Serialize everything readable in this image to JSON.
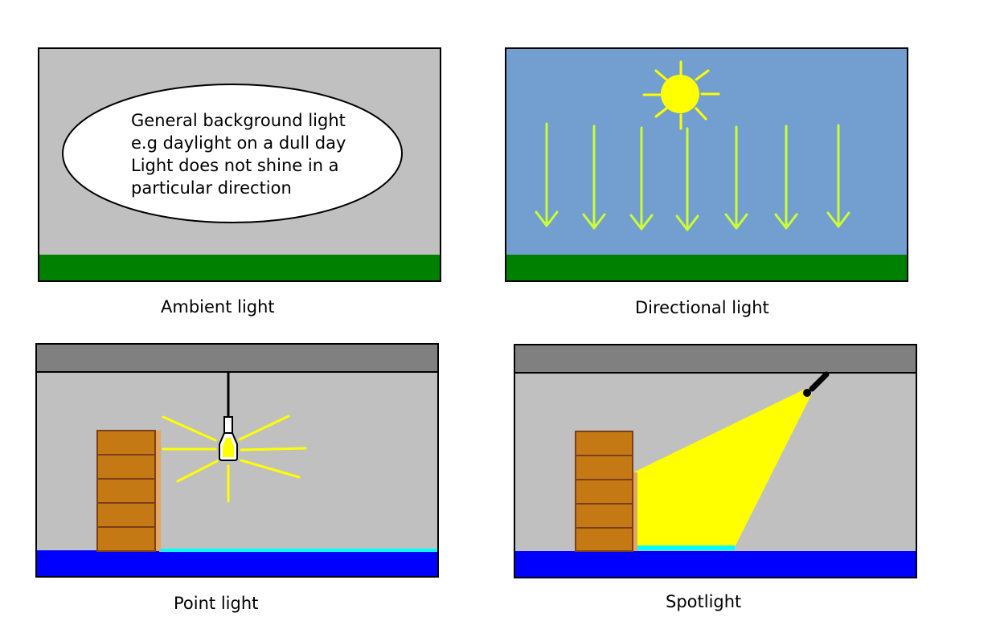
{
  "panels": {
    "ambient": {
      "caption": "Ambient light",
      "description_lines": [
        "General background light",
        "e.g daylight on a dull day",
        "Light does not shine in a",
        "particular direction"
      ]
    },
    "directional": {
      "caption": "Directional light"
    },
    "point": {
      "caption": "Point light"
    },
    "spot": {
      "caption": "Spotlight"
    }
  },
  "colors": {
    "sky_grey": "#c0c0c0",
    "sky_blue": "#729fcf",
    "grass": "#008000",
    "ceiling": "#808080",
    "floor": "#0000ff",
    "floor_light": "#00ffff",
    "light_yellow": "#ffff00",
    "arrow_green": "#ccff33",
    "box_fill": "#c47914",
    "box_stroke": "#7b3f1a"
  }
}
